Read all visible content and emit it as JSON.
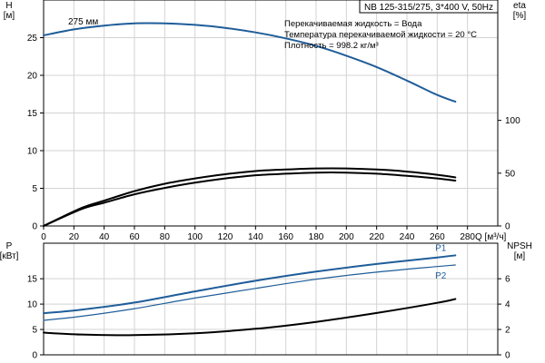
{
  "title": "NB 125-315/275, 3*400 V, 50Hz",
  "info_lines": [
    "Перекачиваемая жидкость = Вода",
    "Температура перекачиваемой жидкости = 20 °C",
    "Плотность = 998.2 кг/м³"
  ],
  "colors": {
    "curve_blue": "#1f5d99",
    "curve_black": "#000000",
    "grid": "#d3d3d3",
    "axis": "#000000"
  },
  "chart_data": [
    {
      "type": "line",
      "panel": "top",
      "xlabel": "Q [м³/ч]",
      "xlim": [
        0,
        300
      ],
      "xticks": [
        0,
        20,
        40,
        60,
        80,
        100,
        120,
        140,
        160,
        180,
        200,
        220,
        240,
        260,
        280
      ],
      "ylabel_left": "H\n[м]",
      "ylim_left": [
        0,
        30
      ],
      "yticks_left": [
        0,
        5,
        10,
        15,
        20,
        25
      ],
      "ylabel_right": "eta\n[%]",
      "ylim_right": [
        0,
        214
      ],
      "yticks_right": [
        0,
        50,
        100
      ],
      "grid": true,
      "series": [
        {
          "name": "275 мм",
          "axis": "left",
          "color": "#1f5d99",
          "x": [
            0,
            20,
            40,
            60,
            80,
            100,
            120,
            140,
            160,
            180,
            200,
            220,
            240,
            260,
            272
          ],
          "y": [
            25.3,
            26.1,
            26.6,
            26.9,
            26.9,
            26.7,
            26.3,
            25.7,
            24.9,
            23.9,
            22.6,
            21.1,
            19.3,
            17.4,
            16.5
          ]
        },
        {
          "axis": "right",
          "color": "#000000",
          "x": [
            0,
            25,
            40,
            60,
            80,
            100,
            120,
            140,
            160,
            180,
            200,
            220,
            240,
            260,
            272
          ],
          "y": [
            0,
            17,
            24,
            33,
            40,
            45,
            49,
            52,
            53.5,
            54.5,
            54.5,
            53.5,
            51.5,
            48.5,
            46
          ]
        },
        {
          "axis": "right",
          "color": "#000000",
          "x": [
            0,
            25,
            40,
            60,
            80,
            100,
            120,
            140,
            160,
            180,
            200,
            220,
            240,
            260,
            272
          ],
          "y": [
            0,
            16,
            22,
            30,
            36,
            41,
            45,
            48,
            49.5,
            50.5,
            50.5,
            49.5,
            47.5,
            45,
            43
          ]
        }
      ],
      "annotations": [
        {
          "text": "275 мм",
          "x": 15,
          "y": 26.4
        }
      ]
    },
    {
      "type": "line",
      "panel": "bottom",
      "xlim": [
        0,
        300
      ],
      "ylabel_left": "P\n[кВт]",
      "ylim_left": [
        0,
        22
      ],
      "yticks_left": [
        0,
        5,
        10,
        15
      ],
      "ylabel_right": "NPSH\n[м]",
      "ylim_right": [
        0,
        8.8
      ],
      "yticks_right": [
        0,
        2,
        4,
        6
      ],
      "grid": true,
      "series": [
        {
          "name": "P1",
          "axis": "left",
          "color": "#1f5d99",
          "x": [
            0,
            25,
            60,
            100,
            140,
            180,
            220,
            260,
            272
          ],
          "y": [
            8.2,
            8.9,
            10.3,
            12.5,
            14.6,
            16.4,
            17.9,
            19.2,
            19.6
          ]
        },
        {
          "name": "P2",
          "axis": "left",
          "color": "#1f5d99",
          "x": [
            0,
            25,
            60,
            100,
            140,
            180,
            220,
            260,
            272
          ],
          "y": [
            6.8,
            7.6,
            9.1,
            11.2,
            13.1,
            14.9,
            16.3,
            17.4,
            17.7
          ]
        },
        {
          "name": "NPSH",
          "axis": "right",
          "color": "#000000",
          "x": [
            0,
            25,
            60,
            100,
            140,
            180,
            220,
            260,
            272
          ],
          "y": [
            1.75,
            1.6,
            1.55,
            1.7,
            2.05,
            2.6,
            3.3,
            4.1,
            4.4
          ]
        }
      ]
    }
  ]
}
